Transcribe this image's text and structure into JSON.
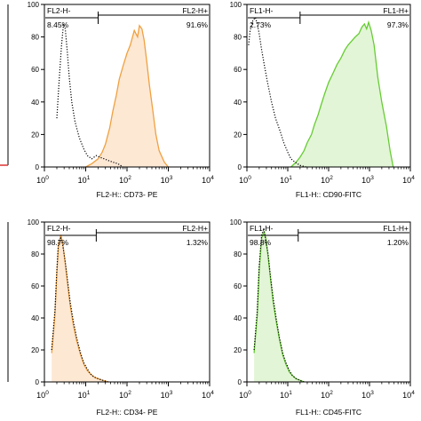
{
  "chart_data": [
    {
      "type": "area",
      "xscale": "log",
      "xlim": [
        1,
        10000
      ],
      "ylim": [
        0,
        100
      ],
      "yticks": [
        0,
        20,
        40,
        60,
        80,
        100
      ],
      "xlabel": "FL2-H:: CD73- PE",
      "gate": {
        "neg_label": "FL2-H-",
        "neg_pct": "8.45%",
        "pos_label": "FL2-H+",
        "pos_pct": "91.6%",
        "split": 20
      },
      "control": {
        "x": [
          2.0,
          2.3,
          2.6,
          2.9,
          3.2,
          3.6,
          4.0,
          4.6,
          5.5,
          7,
          9,
          11,
          14,
          18,
          22,
          28,
          35,
          45,
          60,
          80
        ],
        "y": [
          30,
          55,
          75,
          88,
          85,
          70,
          55,
          40,
          28,
          18,
          11,
          7,
          5,
          7,
          6,
          5,
          4,
          3,
          2,
          0
        ]
      },
      "sample": {
        "x": [
          10,
          14,
          20,
          25,
          30,
          38,
          45,
          55,
          65,
          80,
          100,
          120,
          150,
          180,
          200,
          230,
          260,
          300,
          350,
          420,
          500,
          600,
          800,
          1000
        ],
        "y": [
          0,
          2,
          5,
          9,
          14,
          24,
          34,
          44,
          54,
          62,
          70,
          75,
          84,
          80,
          87,
          85,
          78,
          65,
          50,
          35,
          20,
          10,
          3,
          0
        ]
      },
      "color": "#f0a040",
      "fill": "#fde8d4"
    },
    {
      "type": "area",
      "xscale": "log",
      "xlim": [
        1,
        10000
      ],
      "ylim": [
        0,
        100
      ],
      "yticks": [
        0,
        20,
        40,
        60,
        80,
        100
      ],
      "xlabel": "FL1-H:: CD90-FITC",
      "gate": {
        "neg_label": "FL1-H-",
        "neg_pct": "2.73%",
        "pos_label": "FL1-H+",
        "pos_pct": "97.3%",
        "split": 20
      },
      "control": {
        "x": [
          1.1,
          1.2,
          1.4,
          1.6,
          1.8,
          2.0,
          2.3,
          2.7,
          3.2,
          4,
          5,
          6.5,
          8,
          10,
          12,
          15,
          20,
          28
        ],
        "y": [
          75,
          84,
          90,
          92,
          88,
          82,
          72,
          62,
          52,
          40,
          30,
          22,
          15,
          9,
          5,
          3,
          1,
          0
        ]
      },
      "sample": {
        "x": [
          12,
          16,
          20,
          25,
          30,
          38,
          45,
          55,
          65,
          80,
          100,
          130,
          160,
          200,
          250,
          300,
          380,
          450,
          550,
          650,
          750,
          850,
          950,
          1100,
          1300,
          1600,
          2000,
          2600,
          3200,
          3800
        ],
        "y": [
          0,
          3,
          6,
          10,
          15,
          20,
          26,
          32,
          38,
          45,
          52,
          58,
          63,
          67,
          72,
          75,
          78,
          80,
          82,
          86,
          88,
          85,
          89,
          84,
          75,
          55,
          40,
          25,
          10,
          0
        ]
      },
      "color": "#66cc33",
      "fill": "#e2f5d6"
    },
    {
      "type": "area",
      "xscale": "log",
      "xlim": [
        1,
        10000
      ],
      "ylim": [
        0,
        100
      ],
      "yticks": [
        0,
        20,
        40,
        60,
        80,
        100
      ],
      "xlabel": "FL2-H:: CD34- PE",
      "gate": {
        "neg_label": "FL2-H-",
        "neg_pct": "98.7%",
        "pos_label": "FL2-H+",
        "pos_pct": "1.32%",
        "split": 18
      },
      "control": {
        "x": [
          1.5,
          1.8,
          2.0,
          2.2,
          2.5,
          2.8,
          3.2,
          3.7,
          4.2,
          5,
          6,
          7.5,
          9,
          11,
          13,
          16,
          20,
          26,
          35
        ],
        "y": [
          20,
          45,
          70,
          88,
          90,
          85,
          75,
          62,
          50,
          38,
          28,
          18,
          12,
          8,
          5,
          3,
          2,
          1,
          0
        ]
      },
      "sample": {
        "x": [
          1.5,
          1.8,
          2.0,
          2.2,
          2.5,
          2.8,
          3.2,
          3.7,
          4.2,
          5,
          6,
          7.5,
          9,
          11,
          13,
          16,
          20,
          26,
          35
        ],
        "y": [
          18,
          42,
          68,
          86,
          92,
          86,
          74,
          60,
          48,
          36,
          26,
          17,
          11,
          7,
          5,
          3,
          2,
          1,
          0
        ]
      },
      "color": "#f0a040",
      "fill": "#fde8d4"
    },
    {
      "type": "area",
      "xscale": "log",
      "xlim": [
        1,
        10000
      ],
      "ylim": [
        0,
        100
      ],
      "yticks": [
        0,
        20,
        40,
        60,
        80,
        100
      ],
      "xlabel": "FL1-H:: CD45-FITC",
      "gate": {
        "neg_label": "FL1-H-",
        "neg_pct": "98.8%",
        "pos_label": "FL1-H+",
        "pos_pct": "1.20%",
        "split": 18
      },
      "control": {
        "x": [
          1.5,
          1.8,
          2.0,
          2.3,
          2.6,
          2.9,
          3.3,
          3.8,
          4.4,
          5.2,
          6.2,
          7.5,
          9,
          11,
          13,
          16,
          20,
          25
        ],
        "y": [
          20,
          45,
          72,
          92,
          96,
          88,
          80,
          65,
          52,
          40,
          28,
          18,
          12,
          7,
          4,
          2,
          1,
          0
        ]
      },
      "sample": {
        "x": [
          1.5,
          1.8,
          2.0,
          2.3,
          2.6,
          2.9,
          3.3,
          3.8,
          4.4,
          5.2,
          6.2,
          7.5,
          9,
          11,
          13,
          16,
          20,
          25
        ],
        "y": [
          18,
          42,
          70,
          90,
          94,
          90,
          78,
          64,
          50,
          38,
          27,
          17,
          11,
          6,
          4,
          2,
          1,
          0
        ]
      },
      "color": "#66cc33",
      "fill": "#e2f5d6"
    }
  ]
}
